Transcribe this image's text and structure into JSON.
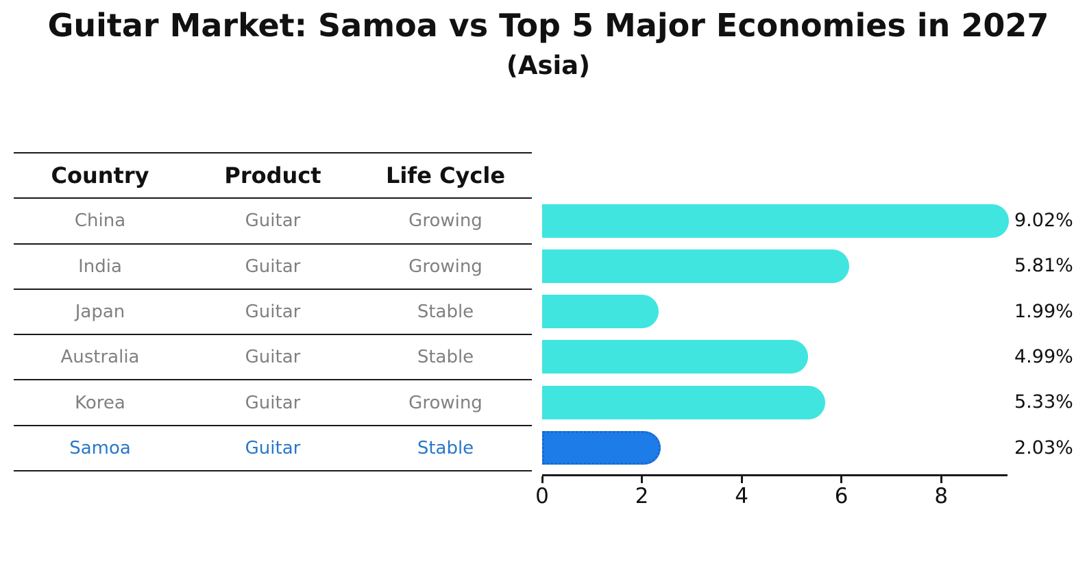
{
  "header": {
    "title": "Guitar Market: Samoa vs Top 5 Major Economies in 2027",
    "subtitle": "(Asia)"
  },
  "table": {
    "headers": [
      "Country",
      "Product",
      "Life Cycle"
    ],
    "rows": [
      [
        "China",
        "Guitar",
        "Growing"
      ],
      [
        "India",
        "Guitar",
        "Growing"
      ],
      [
        "Japan",
        "Guitar",
        "Stable"
      ],
      [
        "Australia",
        "Guitar",
        "Stable"
      ],
      [
        "Korea",
        "Guitar",
        "Growing"
      ],
      [
        "Samoa",
        "Guitar",
        "Stable"
      ]
    ],
    "highlight_row_index": 5
  },
  "chart_data": {
    "type": "bar",
    "orientation": "horizontal",
    "title": "Guitar Market: Samoa vs Top 5 Major Economies in 2027",
    "subtitle": "(Asia)",
    "categories": [
      "China",
      "India",
      "Japan",
      "Australia",
      "Korea",
      "Samoa"
    ],
    "values": [
      9.02,
      5.81,
      1.99,
      4.99,
      5.33,
      2.03
    ],
    "value_labels": [
      "9.02%",
      "5.81%",
      "1.99%",
      "4.99%",
      "5.33%",
      "2.03%"
    ],
    "x_ticks": [
      0,
      2,
      4,
      6,
      8
    ],
    "xlim": [
      0,
      9.33
    ],
    "xlabel": "",
    "ylabel": "",
    "grid": false,
    "legend": false,
    "bar_color": "#40E5E0",
    "highlight_index": 5,
    "highlight_color": "#1E7CE8",
    "highlight_border_color": "#1a66cc",
    "highlight_text_color": "#2878C8",
    "text_color": "#111111",
    "row_text_color": "#808080"
  }
}
